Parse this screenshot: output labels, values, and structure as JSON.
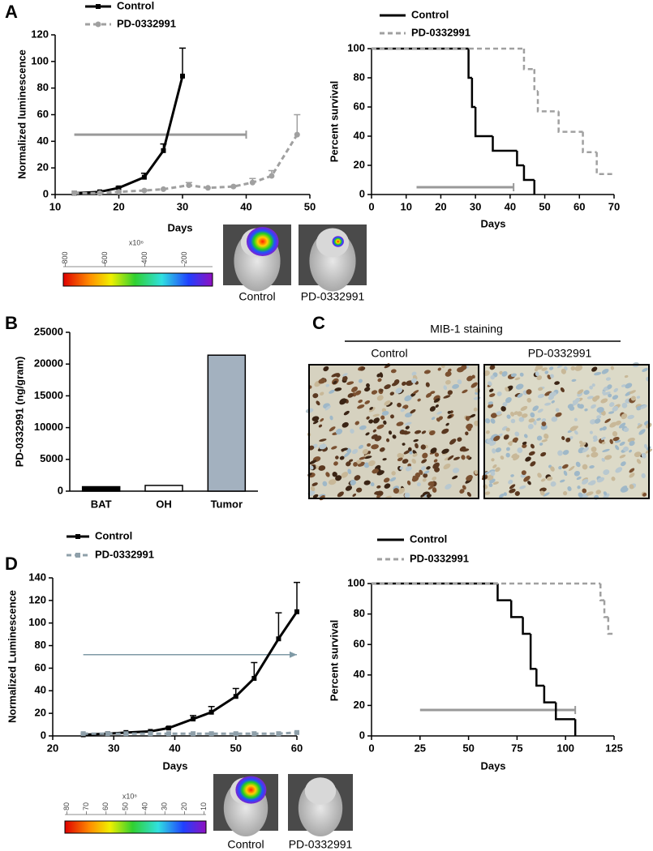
{
  "panel_labels": [
    "A",
    "B",
    "C",
    "D"
  ],
  "chart_data": [
    {
      "type": "line",
      "ylabel": "Normalized luminescence",
      "xlabel": "Days",
      "xlim": [
        10,
        50
      ],
      "xticks": [
        10,
        20,
        30,
        40,
        50
      ],
      "ylim": [
        0,
        120
      ],
      "yticks": [
        0,
        20,
        40,
        60,
        80,
        100,
        120
      ],
      "series": [
        {
          "name": "Control",
          "color": "#000000",
          "dash": false,
          "marker": "square",
          "x": [
            13,
            17,
            20,
            24,
            27,
            30
          ],
          "values": [
            1,
            2,
            5,
            13,
            33,
            89
          ],
          "errors": [
            null,
            null,
            1,
            3,
            5,
            21
          ]
        },
        {
          "name": "PD-0332991",
          "color": "#a0a0a0",
          "dash": true,
          "marker": "circle",
          "x": [
            13,
            17,
            20,
            24,
            27,
            31,
            34,
            38,
            41,
            44,
            48
          ],
          "values": [
            1,
            1,
            2,
            3,
            4,
            7,
            5,
            6,
            9,
            14,
            45
          ],
          "errors": [
            null,
            null,
            null,
            null,
            null,
            2,
            null,
            null,
            3,
            4,
            15
          ]
        }
      ],
      "treatment": {
        "x": [
          13,
          40
        ],
        "y": 45,
        "color": "#999999",
        "arrow": false
      }
    },
    {
      "type": "step",
      "ylabel": "Percent survival",
      "xlabel": "Days",
      "xlim": [
        0,
        70
      ],
      "xticks": [
        0,
        10,
        20,
        30,
        40,
        50,
        60,
        70
      ],
      "ylim": [
        0,
        100
      ],
      "yticks": [
        0,
        20,
        40,
        60,
        80,
        100
      ],
      "series": [
        {
          "name": "Control",
          "color": "#000000",
          "dash": false,
          "x": [
            0,
            28,
            29,
            30,
            35,
            42,
            44,
            47
          ],
          "values": [
            100,
            80,
            60,
            40,
            30,
            20,
            10,
            0
          ]
        },
        {
          "name": "PD-0332991",
          "color": "#a0a0a0",
          "dash": true,
          "x": [
            0,
            44,
            47,
            48,
            54,
            61,
            65,
            70
          ],
          "values": [
            100,
            86,
            71,
            57,
            43,
            29,
            14,
            14
          ]
        }
      ],
      "treatment": {
        "x": [
          13,
          41
        ],
        "y": 5,
        "color": "#999999",
        "arrow": false
      }
    },
    {
      "type": "bar",
      "ylabel": "PD-0332991 (ng/gram)",
      "categories": [
        "BAT",
        "OH",
        "Tumor"
      ],
      "values": [
        700,
        900,
        21400
      ],
      "colors": [
        "#000000",
        "#ffffff",
        "#a3b1bf"
      ],
      "ylim": [
        0,
        25000
      ],
      "yticks": [
        0,
        5000,
        10000,
        15000,
        20000,
        25000
      ]
    },
    {
      "type": "line",
      "ylabel": "Normalized Luminescence",
      "xlabel": "Days",
      "xlim": [
        20,
        60
      ],
      "xticks": [
        20,
        30,
        40,
        50,
        60
      ],
      "ylim": [
        0,
        140
      ],
      "yticks": [
        0,
        20,
        40,
        60,
        80,
        100,
        120,
        140
      ],
      "series": [
        {
          "name": "Control",
          "color": "#000000",
          "dash": false,
          "marker": "square",
          "x": [
            25,
            29,
            32,
            36,
            39,
            43,
            46,
            50,
            53,
            57,
            60
          ],
          "values": [
            1,
            2,
            3,
            4,
            7,
            15,
            21,
            35,
            51,
            86,
            110
          ],
          "errors": [
            null,
            null,
            null,
            null,
            1,
            3,
            5,
            7,
            14,
            23,
            26
          ]
        },
        {
          "name": "PD-0332991",
          "color": "#8fa0aa",
          "dash": true,
          "marker": "square",
          "x": [
            25,
            29,
            32,
            36,
            39,
            43,
            46,
            50,
            53,
            57,
            60
          ],
          "values": [
            2,
            2,
            2,
            2,
            2,
            2,
            2,
            2,
            2,
            2,
            3
          ],
          "errors": [
            null,
            null,
            null,
            null,
            null,
            null,
            null,
            null,
            null,
            null,
            null
          ]
        }
      ],
      "treatment": {
        "x": [
          25,
          60
        ],
        "y": 72,
        "color": "#7f9aa6",
        "arrow": true
      }
    },
    {
      "type": "step",
      "ylabel": "Percent survival",
      "xlabel": "Days",
      "xlim": [
        0,
        125
      ],
      "xticks": [
        0,
        25,
        50,
        75,
        100,
        125
      ],
      "ylim": [
        0,
        100
      ],
      "yticks": [
        0,
        20,
        40,
        60,
        80,
        100
      ],
      "series": [
        {
          "name": "Control",
          "color": "#000000",
          "dash": false,
          "x": [
            0,
            65,
            72,
            78,
            82,
            85,
            89,
            95,
            105
          ],
          "values": [
            100,
            89,
            78,
            67,
            44,
            33,
            22,
            11,
            0
          ]
        },
        {
          "name": "PD-0332991",
          "color": "#a0a0a0",
          "dash": true,
          "x": [
            0,
            118,
            120,
            122,
            125
          ],
          "values": [
            100,
            89,
            78,
            67,
            67
          ]
        }
      ],
      "treatment": {
        "x": [
          25,
          105
        ],
        "y": 17,
        "color": "#999999",
        "arrow": false
      }
    }
  ],
  "colorbars": [
    {
      "unit": "x10⁶",
      "lim": [
        810,
        60
      ],
      "ticks": [
        800,
        600,
        400,
        200
      ]
    },
    {
      "unit": "x10⁶",
      "lim": [
        81,
        9
      ],
      "ticks": [
        80,
        70,
        60,
        50,
        40,
        30,
        20,
        10
      ]
    }
  ],
  "image_captions": [
    [
      "Control",
      "PD-0332991"
    ],
    [
      "Control",
      "PD-0332991"
    ]
  ],
  "staining": {
    "title": "MIB-1 staining",
    "captions": [
      "Control",
      "PD-0332991"
    ]
  }
}
